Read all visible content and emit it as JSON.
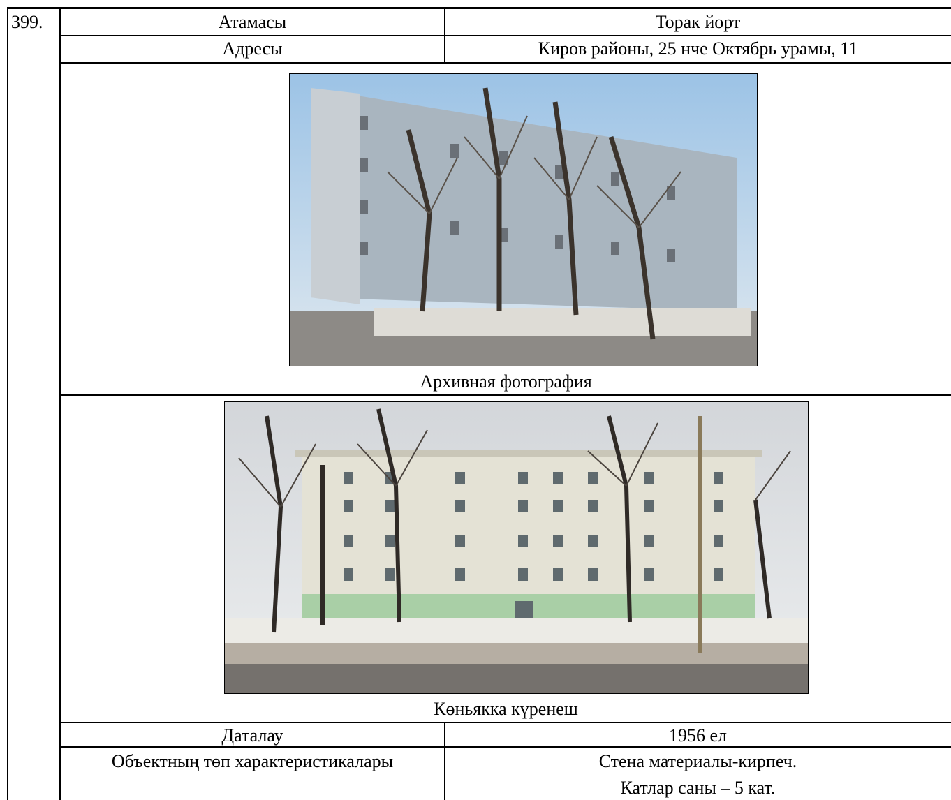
{
  "number": "399.",
  "rows": [
    [
      "Атамасы",
      "Торак йорт"
    ],
    [
      "Адресы",
      "Киров районы, 25 нче Октябрь урамы, 11"
    ]
  ],
  "photos": [
    {
      "caption": "Архивная фотография"
    },
    {
      "caption": "Көньякка күренеш"
    }
  ],
  "details": [
    [
      "Даталау",
      "1956 ел"
    ],
    [
      "Объектның төп характеристикалары",
      [
        "Стена материалы-кирпеч.",
        "Катлар саны – 5 кат."
      ]
    ]
  ]
}
